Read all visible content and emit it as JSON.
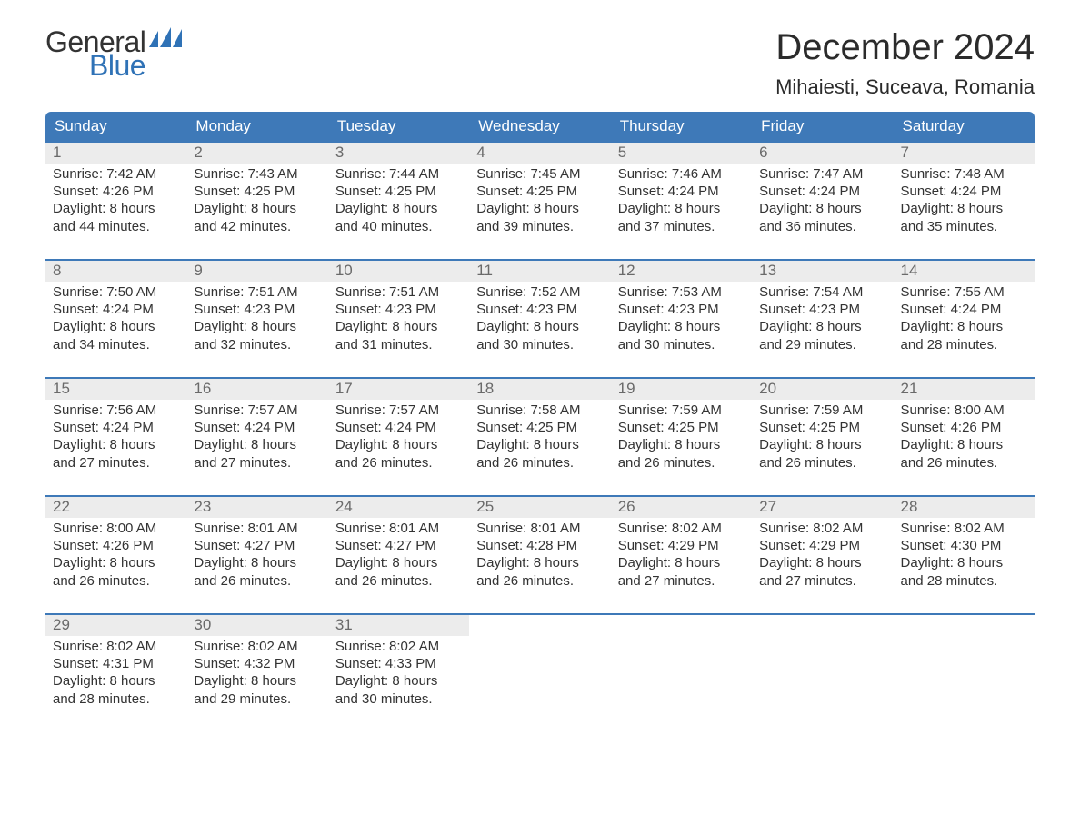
{
  "logo": {
    "general": "General",
    "blue": "Blue",
    "flag_color": "#2f72b6"
  },
  "title": "December 2024",
  "location": "Mihaiesti, Suceava, Romania",
  "colors": {
    "header_bg": "#3e79b8",
    "header_text": "#ffffff",
    "week_border": "#3e79b8",
    "daynum_bg": "#ececec",
    "daynum_text": "#6a6a6a",
    "body_text": "#333333",
    "page_bg": "#ffffff"
  },
  "typography": {
    "title_fontsize": 40,
    "location_fontsize": 22,
    "weekday_fontsize": 17,
    "daynum_fontsize": 17,
    "body_fontsize": 15
  },
  "weekdays": [
    "Sunday",
    "Monday",
    "Tuesday",
    "Wednesday",
    "Thursday",
    "Friday",
    "Saturday"
  ],
  "weeks": [
    [
      {
        "num": "1",
        "sunrise": "Sunrise: 7:42 AM",
        "sunset": "Sunset: 4:26 PM",
        "d1": "Daylight: 8 hours",
        "d2": "and 44 minutes."
      },
      {
        "num": "2",
        "sunrise": "Sunrise: 7:43 AM",
        "sunset": "Sunset: 4:25 PM",
        "d1": "Daylight: 8 hours",
        "d2": "and 42 minutes."
      },
      {
        "num": "3",
        "sunrise": "Sunrise: 7:44 AM",
        "sunset": "Sunset: 4:25 PM",
        "d1": "Daylight: 8 hours",
        "d2": "and 40 minutes."
      },
      {
        "num": "4",
        "sunrise": "Sunrise: 7:45 AM",
        "sunset": "Sunset: 4:25 PM",
        "d1": "Daylight: 8 hours",
        "d2": "and 39 minutes."
      },
      {
        "num": "5",
        "sunrise": "Sunrise: 7:46 AM",
        "sunset": "Sunset: 4:24 PM",
        "d1": "Daylight: 8 hours",
        "d2": "and 37 minutes."
      },
      {
        "num": "6",
        "sunrise": "Sunrise: 7:47 AM",
        "sunset": "Sunset: 4:24 PM",
        "d1": "Daylight: 8 hours",
        "d2": "and 36 minutes."
      },
      {
        "num": "7",
        "sunrise": "Sunrise: 7:48 AM",
        "sunset": "Sunset: 4:24 PM",
        "d1": "Daylight: 8 hours",
        "d2": "and 35 minutes."
      }
    ],
    [
      {
        "num": "8",
        "sunrise": "Sunrise: 7:50 AM",
        "sunset": "Sunset: 4:24 PM",
        "d1": "Daylight: 8 hours",
        "d2": "and 34 minutes."
      },
      {
        "num": "9",
        "sunrise": "Sunrise: 7:51 AM",
        "sunset": "Sunset: 4:23 PM",
        "d1": "Daylight: 8 hours",
        "d2": "and 32 minutes."
      },
      {
        "num": "10",
        "sunrise": "Sunrise: 7:51 AM",
        "sunset": "Sunset: 4:23 PM",
        "d1": "Daylight: 8 hours",
        "d2": "and 31 minutes."
      },
      {
        "num": "11",
        "sunrise": "Sunrise: 7:52 AM",
        "sunset": "Sunset: 4:23 PM",
        "d1": "Daylight: 8 hours",
        "d2": "and 30 minutes."
      },
      {
        "num": "12",
        "sunrise": "Sunrise: 7:53 AM",
        "sunset": "Sunset: 4:23 PM",
        "d1": "Daylight: 8 hours",
        "d2": "and 30 minutes."
      },
      {
        "num": "13",
        "sunrise": "Sunrise: 7:54 AM",
        "sunset": "Sunset: 4:23 PM",
        "d1": "Daylight: 8 hours",
        "d2": "and 29 minutes."
      },
      {
        "num": "14",
        "sunrise": "Sunrise: 7:55 AM",
        "sunset": "Sunset: 4:24 PM",
        "d1": "Daylight: 8 hours",
        "d2": "and 28 minutes."
      }
    ],
    [
      {
        "num": "15",
        "sunrise": "Sunrise: 7:56 AM",
        "sunset": "Sunset: 4:24 PM",
        "d1": "Daylight: 8 hours",
        "d2": "and 27 minutes."
      },
      {
        "num": "16",
        "sunrise": "Sunrise: 7:57 AM",
        "sunset": "Sunset: 4:24 PM",
        "d1": "Daylight: 8 hours",
        "d2": "and 27 minutes."
      },
      {
        "num": "17",
        "sunrise": "Sunrise: 7:57 AM",
        "sunset": "Sunset: 4:24 PM",
        "d1": "Daylight: 8 hours",
        "d2": "and 26 minutes."
      },
      {
        "num": "18",
        "sunrise": "Sunrise: 7:58 AM",
        "sunset": "Sunset: 4:25 PM",
        "d1": "Daylight: 8 hours",
        "d2": "and 26 minutes."
      },
      {
        "num": "19",
        "sunrise": "Sunrise: 7:59 AM",
        "sunset": "Sunset: 4:25 PM",
        "d1": "Daylight: 8 hours",
        "d2": "and 26 minutes."
      },
      {
        "num": "20",
        "sunrise": "Sunrise: 7:59 AM",
        "sunset": "Sunset: 4:25 PM",
        "d1": "Daylight: 8 hours",
        "d2": "and 26 minutes."
      },
      {
        "num": "21",
        "sunrise": "Sunrise: 8:00 AM",
        "sunset": "Sunset: 4:26 PM",
        "d1": "Daylight: 8 hours",
        "d2": "and 26 minutes."
      }
    ],
    [
      {
        "num": "22",
        "sunrise": "Sunrise: 8:00 AM",
        "sunset": "Sunset: 4:26 PM",
        "d1": "Daylight: 8 hours",
        "d2": "and 26 minutes."
      },
      {
        "num": "23",
        "sunrise": "Sunrise: 8:01 AM",
        "sunset": "Sunset: 4:27 PM",
        "d1": "Daylight: 8 hours",
        "d2": "and 26 minutes."
      },
      {
        "num": "24",
        "sunrise": "Sunrise: 8:01 AM",
        "sunset": "Sunset: 4:27 PM",
        "d1": "Daylight: 8 hours",
        "d2": "and 26 minutes."
      },
      {
        "num": "25",
        "sunrise": "Sunrise: 8:01 AM",
        "sunset": "Sunset: 4:28 PM",
        "d1": "Daylight: 8 hours",
        "d2": "and 26 minutes."
      },
      {
        "num": "26",
        "sunrise": "Sunrise: 8:02 AM",
        "sunset": "Sunset: 4:29 PM",
        "d1": "Daylight: 8 hours",
        "d2": "and 27 minutes."
      },
      {
        "num": "27",
        "sunrise": "Sunrise: 8:02 AM",
        "sunset": "Sunset: 4:29 PM",
        "d1": "Daylight: 8 hours",
        "d2": "and 27 minutes."
      },
      {
        "num": "28",
        "sunrise": "Sunrise: 8:02 AM",
        "sunset": "Sunset: 4:30 PM",
        "d1": "Daylight: 8 hours",
        "d2": "and 28 minutes."
      }
    ],
    [
      {
        "num": "29",
        "sunrise": "Sunrise: 8:02 AM",
        "sunset": "Sunset: 4:31 PM",
        "d1": "Daylight: 8 hours",
        "d2": "and 28 minutes."
      },
      {
        "num": "30",
        "sunrise": "Sunrise: 8:02 AM",
        "sunset": "Sunset: 4:32 PM",
        "d1": "Daylight: 8 hours",
        "d2": "and 29 minutes."
      },
      {
        "num": "31",
        "sunrise": "Sunrise: 8:02 AM",
        "sunset": "Sunset: 4:33 PM",
        "d1": "Daylight: 8 hours",
        "d2": "and 30 minutes."
      },
      {
        "empty": true
      },
      {
        "empty": true
      },
      {
        "empty": true
      },
      {
        "empty": true
      }
    ]
  ]
}
